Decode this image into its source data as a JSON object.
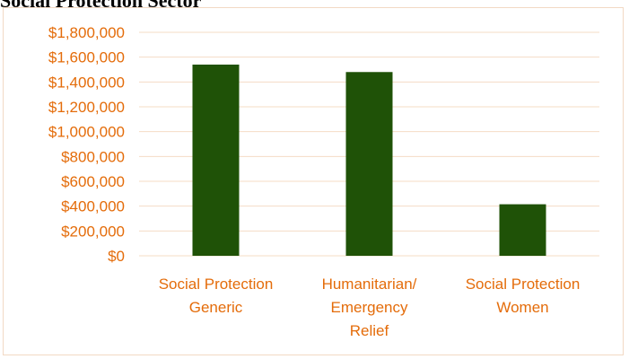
{
  "page": {
    "title": "Social Protection Sector"
  },
  "colors": {
    "bar": "#1f5207",
    "text": "#e46c0a",
    "grid": "#f5dcc6",
    "frame": "#f2d9c4"
  },
  "chart_data": {
    "type": "bar",
    "title": "",
    "xlabel": "",
    "ylabel": "",
    "categories": [
      [
        "Social Protection",
        "Generic"
      ],
      [
        "Humanitarian/",
        "Emergency",
        "Relief"
      ],
      [
        "Social Protection",
        "Women"
      ]
    ],
    "values": [
      1540000,
      1480000,
      415000
    ],
    "ylim": [
      0,
      1800000
    ],
    "y_ticks": [
      0,
      200000,
      400000,
      600000,
      800000,
      1000000,
      1200000,
      1400000,
      1600000,
      1800000
    ],
    "y_tick_labels": [
      "$0",
      "$200,000",
      "$400,000",
      "$600,000",
      "$800,000",
      "$1,000,000",
      "$1,200,000",
      "$1,400,000",
      "$1,600,000",
      "$1,800,000"
    ],
    "grid": true,
    "legend": "none"
  }
}
